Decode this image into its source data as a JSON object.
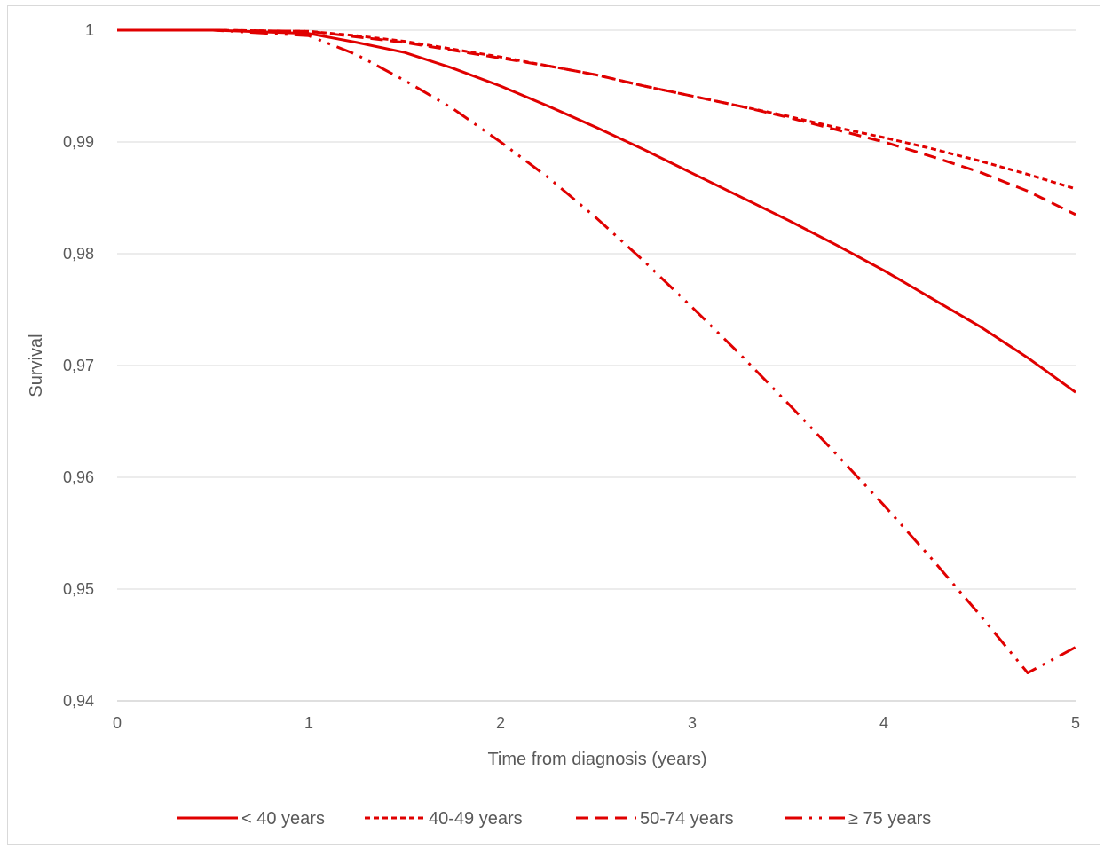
{
  "chart_data": {
    "type": "line",
    "title": "",
    "xlabel": "Time from diagnosis (years)",
    "ylabel": "Survival",
    "xlim": [
      0,
      5
    ],
    "ylim": [
      0.94,
      1.0
    ],
    "x_ticks": [
      "0",
      "1",
      "2",
      "3",
      "4",
      "5"
    ],
    "y_ticks": [
      "0,94",
      "0,95",
      "0,96",
      "0,97",
      "0,98",
      "0,99",
      "1"
    ],
    "grid": "horizontal",
    "legend_position": "bottom",
    "line_color": "#e00000",
    "x": [
      0,
      0.5,
      1.0,
      1.25,
      1.5,
      1.75,
      2.0,
      2.25,
      2.5,
      2.75,
      3.0,
      3.25,
      3.5,
      3.75,
      4.0,
      4.25,
      4.5,
      4.75,
      5.0
    ],
    "series": [
      {
        "name": "< 40 years",
        "dash": "solid",
        "values": [
          1.0,
          1.0,
          0.9997,
          0.9989,
          0.998,
          0.9966,
          0.995,
          0.9932,
          0.9913,
          0.9893,
          0.9872,
          0.9851,
          0.983,
          0.9808,
          0.9785,
          0.976,
          0.9735,
          0.9707,
          0.9676
        ]
      },
      {
        "name": "40-49 years",
        "dash": "short-dash",
        "values": [
          1.0,
          1.0,
          0.9999,
          0.9995,
          0.999,
          0.9983,
          0.9976,
          0.9968,
          0.996,
          0.995,
          0.9941,
          0.9932,
          0.9923,
          0.9913,
          0.9904,
          0.9894,
          0.9883,
          0.9871,
          0.9858
        ]
      },
      {
        "name": "50-74 years",
        "dash": "long-dash",
        "values": [
          1.0,
          1.0,
          0.9999,
          0.9994,
          0.9989,
          0.9982,
          0.9975,
          0.9968,
          0.996,
          0.995,
          0.9941,
          0.9932,
          0.9922,
          0.9911,
          0.99,
          0.9887,
          0.9873,
          0.9856,
          0.9835
        ]
      },
      {
        "name": "≥  75 years",
        "dash": "long-dash-dot-dot",
        "values": [
          1.0,
          1.0,
          0.9995,
          0.9978,
          0.9955,
          0.993,
          0.99,
          0.9868,
          0.9832,
          0.9793,
          0.9752,
          0.971,
          0.9666,
          0.9621,
          0.9575,
          0.9527,
          0.9477,
          0.9425,
          0.9448
        ]
      }
    ]
  }
}
